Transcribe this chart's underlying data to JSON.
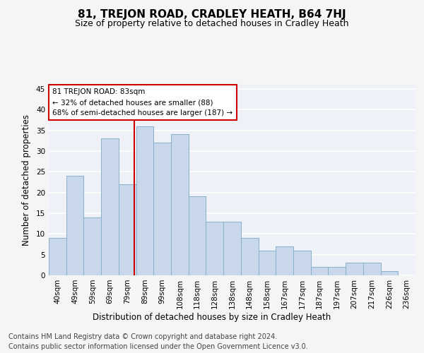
{
  "title": "81, TREJON ROAD, CRADLEY HEATH, B64 7HJ",
  "subtitle": "Size of property relative to detached houses in Cradley Heath",
  "xlabel": "Distribution of detached houses by size in Cradley Heath",
  "ylabel": "Number of detached properties",
  "categories": [
    "40sqm",
    "49sqm",
    "59sqm",
    "69sqm",
    "79sqm",
    "89sqm",
    "99sqm",
    "108sqm",
    "118sqm",
    "128sqm",
    "138sqm",
    "148sqm",
    "158sqm",
    "167sqm",
    "177sqm",
    "187sqm",
    "197sqm",
    "207sqm",
    "217sqm",
    "226sqm",
    "236sqm"
  ],
  "values": [
    9,
    24,
    14,
    33,
    22,
    36,
    32,
    34,
    19,
    13,
    13,
    9,
    6,
    7,
    6,
    2,
    2,
    3,
    3,
    1,
    0
  ],
  "bar_color": "#c8d8ea",
  "bar_edge_color": "#8ab0cc",
  "highlight_line_color": "#cc0000",
  "annotation_text": "81 TREJON ROAD: 83sqm\n← 32% of detached houses are smaller (88)\n68% of semi-detached houses are larger (187) →",
  "annotation_box_color": "#ffffff",
  "annotation_box_edge": "#cc0000",
  "ylim": [
    0,
    46
  ],
  "yticks": [
    0,
    5,
    10,
    15,
    20,
    25,
    30,
    35,
    40,
    45
  ],
  "footer_line1": "Contains HM Land Registry data © Crown copyright and database right 2024.",
  "footer_line2": "Contains public sector information licensed under the Open Government Licence v3.0.",
  "background_color": "#eef2f8",
  "grid_color": "#ffffff",
  "title_fontsize": 11,
  "subtitle_fontsize": 9,
  "axis_label_fontsize": 8.5,
  "tick_fontsize": 7.5,
  "footer_fontsize": 7,
  "fig_bg_color": "#f5f5f5"
}
